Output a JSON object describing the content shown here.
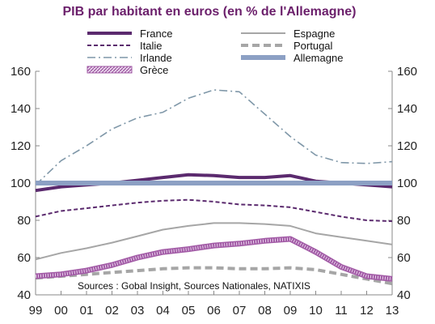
{
  "chart_data": {
    "type": "line",
    "title": "PIB par habitant en euros (en % de l'Allemagne)",
    "source": "Sources : Gobal Insight, Sources Nationales, NATIXIS",
    "x": [
      "99",
      "00",
      "01",
      "02",
      "03",
      "04",
      "05",
      "06",
      "07",
      "08",
      "09",
      "10",
      "11",
      "12",
      "13"
    ],
    "ylim": [
      40,
      160
    ],
    "yticks": [
      40,
      60,
      80,
      100,
      120,
      140,
      160
    ],
    "grid": false,
    "legend_position": "top",
    "series": [
      {
        "name": "France",
        "color": "#5b2a6e",
        "style": "thick",
        "values": [
          96,
          98,
          99,
          100,
          101.5,
          103,
          104.5,
          104,
          103,
          103,
          104,
          101,
          100,
          99,
          98
        ]
      },
      {
        "name": "Espagne",
        "color": "#a6a6a6",
        "style": "solid",
        "values": [
          59,
          62.5,
          65,
          68,
          71.5,
          75,
          77,
          78.5,
          78.5,
          78,
          77,
          73,
          71,
          69,
          67
        ]
      },
      {
        "name": "Italie",
        "color": "#5b2a6e",
        "style": "dashed",
        "values": [
          82,
          85,
          86.5,
          88,
          89.5,
          90.5,
          91,
          90,
          88.5,
          88,
          87,
          84.5,
          82,
          80,
          79.5
        ]
      },
      {
        "name": "Portugal",
        "color": "#a6a6a6",
        "style": "thick-dashed",
        "values": [
          49,
          50,
          51,
          52,
          53,
          54,
          54.5,
          54.5,
          54,
          54,
          54.5,
          53.5,
          51,
          48.5,
          46
        ]
      },
      {
        "name": "Irlande",
        "color": "#7f97a8",
        "style": "dashdot",
        "values": [
          99,
          112,
          120,
          129,
          135,
          138,
          145.5,
          150,
          149,
          137,
          125,
          115,
          111,
          110.5,
          111.5
        ]
      },
      {
        "name": "Allemagne",
        "color": "#8ca0c4",
        "style": "thick-solid",
        "values": [
          100,
          100,
          100,
          100,
          100,
          100,
          100,
          100,
          100,
          100,
          100,
          100,
          100,
          100,
          100
        ]
      },
      {
        "name": "Grèce",
        "color": "#a25ba6",
        "style": "hatched",
        "values": [
          50,
          51,
          53,
          56,
          60,
          63,
          64.5,
          66.5,
          67.5,
          69,
          70,
          63,
          55,
          50,
          48.5
        ]
      }
    ]
  }
}
